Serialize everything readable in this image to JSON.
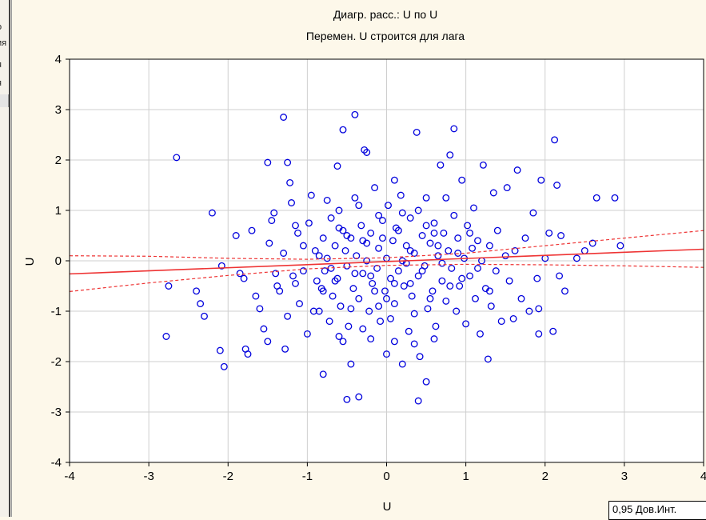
{
  "sidebar": {
    "fragments": [
      "о",
      "ия",
      "я",
      "я",
      ":"
    ]
  },
  "legend_label": "0,95 Дов.Инт.",
  "colors": {
    "points": "#0000dd",
    "fit_line": "#ee3333",
    "grid": "#cfcfcf",
    "plot_bg": "#ffffff",
    "page_bg": "#fdf8ea"
  },
  "chart_data": {
    "type": "scatter",
    "title": "Диагр. расс.: U по U",
    "subtitle": "Перемен. U строится для лага",
    "xlabel": "U",
    "ylabel": "U",
    "xlim": [
      -4,
      4
    ],
    "ylim": [
      -4,
      4
    ],
    "xticks": [
      "-4",
      "-3",
      "-2",
      "-1",
      "0",
      "1",
      "2",
      "3",
      "4"
    ],
    "yticks": [
      "4",
      "3",
      "2",
      "1",
      "0",
      "-1",
      "-2",
      "-3",
      "-4"
    ],
    "grid": true,
    "legend_position": "bottom-right",
    "fit_line": {
      "y_at_xmin": -0.26,
      "y_at_xmax": 0.23
    },
    "ci_upper": [
      [
        -4,
        0.1
      ],
      [
        -3,
        0.09
      ],
      [
        -2,
        0.05
      ],
      [
        -1,
        0.03
      ],
      [
        0,
        0.06
      ],
      [
        1,
        0.15
      ],
      [
        2,
        0.3
      ],
      [
        3,
        0.45
      ],
      [
        4,
        0.6
      ]
    ],
    "ci_lower": [
      [
        -4,
        -0.61
      ],
      [
        -3,
        -0.44
      ],
      [
        -2,
        -0.29
      ],
      [
        -1,
        -0.16
      ],
      [
        0,
        -0.09
      ],
      [
        1,
        -0.07
      ],
      [
        2,
        -0.08
      ],
      [
        3,
        -0.1
      ],
      [
        4,
        -0.13
      ]
    ],
    "points": [
      [
        -2.65,
        2.05
      ],
      [
        -2.75,
        -0.5
      ],
      [
        -2.78,
        -1.5
      ],
      [
        -2.4,
        -0.6
      ],
      [
        -2.35,
        -0.85
      ],
      [
        -2.3,
        -1.1
      ],
      [
        -2.2,
        0.95
      ],
      [
        -2.1,
        -1.78
      ],
      [
        -2.05,
        -2.1
      ],
      [
        -2.08,
        -0.1
      ],
      [
        -1.9,
        0.5
      ],
      [
        -1.85,
        -0.25
      ],
      [
        -1.8,
        -0.35
      ],
      [
        -1.78,
        -1.75
      ],
      [
        -1.75,
        -1.85
      ],
      [
        -1.7,
        0.6
      ],
      [
        -1.65,
        -0.7
      ],
      [
        -1.6,
        -0.95
      ],
      [
        -1.55,
        -1.35
      ],
      [
        -1.5,
        -1.6
      ],
      [
        -1.48,
        0.35
      ],
      [
        -1.45,
        0.8
      ],
      [
        -1.42,
        0.95
      ],
      [
        -1.4,
        -0.25
      ],
      [
        -1.38,
        -0.5
      ],
      [
        -1.35,
        -0.6
      ],
      [
        -1.3,
        0.15
      ],
      [
        -1.28,
        -1.75
      ],
      [
        -1.25,
        -1.1
      ],
      [
        -1.22,
        1.55
      ],
      [
        -1.2,
        1.15
      ],
      [
        -1.18,
        -0.3
      ],
      [
        -1.15,
        -0.45
      ],
      [
        -1.12,
        0.55
      ],
      [
        -1.1,
        -0.85
      ],
      [
        -1.05,
        0.3
      ],
      [
        -1.0,
        -1.45
      ],
      [
        -0.98,
        0.75
      ],
      [
        -0.95,
        1.3
      ],
      [
        -0.92,
        -1.0
      ],
      [
        -0.88,
        -0.4
      ],
      [
        -0.85,
        0.1
      ],
      [
        -0.82,
        -0.55
      ],
      [
        -0.8,
        0.45
      ],
      [
        -0.78,
        -0.2
      ],
      [
        -0.75,
        0.05
      ],
      [
        -0.72,
        -1.2
      ],
      [
        -0.7,
        0.85
      ],
      [
        -0.68,
        -0.7
      ],
      [
        -0.65,
        0.3
      ],
      [
        -0.62,
        -0.35
      ],
      [
        -0.6,
        1.0
      ],
      [
        -0.58,
        -0.9
      ],
      [
        -0.55,
        0.6
      ],
      [
        -0.52,
        0.2
      ],
      [
        -0.5,
        -0.1
      ],
      [
        -0.48,
        -1.3
      ],
      [
        -0.45,
        0.45
      ],
      [
        -0.42,
        -0.55
      ],
      [
        -0.4,
        1.25
      ],
      [
        -0.38,
        0.1
      ],
      [
        -0.35,
        -0.75
      ],
      [
        -0.32,
        0.7
      ],
      [
        -0.3,
        -0.25
      ],
      [
        -0.28,
        2.2
      ],
      [
        -0.25,
        0.35
      ],
      [
        -0.22,
        -1.0
      ],
      [
        -0.2,
        0.55
      ],
      [
        -0.18,
        -0.45
      ],
      [
        -0.15,
        1.45
      ],
      [
        -0.12,
        -0.15
      ],
      [
        -0.1,
        0.25
      ],
      [
        -0.08,
        -1.2
      ],
      [
        -0.05,
        0.8
      ],
      [
        -0.02,
        -0.6
      ],
      [
        0.0,
        0.05
      ],
      [
        0.02,
        1.1
      ],
      [
        0.05,
        -0.35
      ],
      [
        0.08,
        0.4
      ],
      [
        0.1,
        -0.85
      ],
      [
        0.12,
        0.65
      ],
      [
        0.15,
        -0.2
      ],
      [
        0.18,
        1.3
      ],
      [
        0.2,
        0.0
      ],
      [
        0.22,
        -0.5
      ],
      [
        0.25,
        0.3
      ],
      [
        0.28,
        -1.4
      ],
      [
        0.3,
        0.85
      ],
      [
        0.32,
        -0.7
      ],
      [
        0.35,
        0.15
      ],
      [
        0.38,
        2.55
      ],
      [
        0.4,
        -0.3
      ],
      [
        0.42,
        -1.9
      ],
      [
        0.45,
        0.5
      ],
      [
        0.48,
        -0.1
      ],
      [
        0.5,
        1.25
      ],
      [
        0.52,
        -0.95
      ],
      [
        0.55,
        0.35
      ],
      [
        0.58,
        -0.6
      ],
      [
        0.6,
        0.75
      ],
      [
        0.62,
        -1.3
      ],
      [
        0.65,
        0.1
      ],
      [
        0.68,
        1.9
      ],
      [
        0.7,
        -0.4
      ],
      [
        0.72,
        0.55
      ],
      [
        0.75,
        -0.8
      ],
      [
        0.78,
        0.2
      ],
      [
        0.8,
        2.1
      ],
      [
        0.82,
        -0.15
      ],
      [
        0.85,
        0.9
      ],
      [
        0.88,
        -1.0
      ],
      [
        0.9,
        0.45
      ],
      [
        0.92,
        -0.5
      ],
      [
        0.95,
        1.6
      ],
      [
        0.98,
        0.05
      ],
      [
        1.0,
        -1.25
      ],
      [
        1.02,
        0.7
      ],
      [
        1.05,
        -0.3
      ],
      [
        1.08,
        0.25
      ],
      [
        1.1,
        1.05
      ],
      [
        1.12,
        -0.75
      ],
      [
        1.15,
        0.4
      ],
      [
        1.18,
        -1.45
      ],
      [
        1.2,
        0.0
      ],
      [
        1.22,
        1.9
      ],
      [
        1.25,
        -0.55
      ],
      [
        1.28,
        -1.95
      ],
      [
        1.3,
        0.3
      ],
      [
        1.32,
        -0.9
      ],
      [
        1.35,
        1.35
      ],
      [
        1.38,
        -0.2
      ],
      [
        1.4,
        0.6
      ],
      [
        1.45,
        -1.2
      ],
      [
        1.5,
        0.1
      ],
      [
        1.52,
        1.45
      ],
      [
        1.55,
        -0.4
      ],
      [
        1.6,
        -1.15
      ],
      [
        1.62,
        0.2
      ],
      [
        1.65,
        1.8
      ],
      [
        1.7,
        -0.75
      ],
      [
        1.75,
        0.45
      ],
      [
        1.8,
        -1.0
      ],
      [
        1.85,
        0.95
      ],
      [
        1.9,
        -0.35
      ],
      [
        1.92,
        -1.45
      ],
      [
        1.95,
        1.6
      ],
      [
        2.0,
        0.05
      ],
      [
        2.05,
        0.55
      ],
      [
        2.1,
        -1.4
      ],
      [
        2.12,
        2.4
      ],
      [
        2.15,
        1.5
      ],
      [
        2.18,
        -0.3
      ],
      [
        2.2,
        0.5
      ],
      [
        2.25,
        -0.6
      ],
      [
        2.4,
        0.05
      ],
      [
        2.5,
        0.2
      ],
      [
        2.6,
        0.35
      ],
      [
        2.65,
        1.25
      ],
      [
        2.88,
        1.25
      ],
      [
        2.95,
        0.3
      ],
      [
        1.92,
        -0.95
      ],
      [
        1.3,
        -0.6
      ],
      [
        -0.4,
        2.9
      ],
      [
        -0.55,
        2.6
      ],
      [
        -1.3,
        2.85
      ],
      [
        -0.62,
        1.88
      ],
      [
        -0.25,
        2.15
      ],
      [
        -1.5,
        1.95
      ],
      [
        -1.25,
        1.95
      ],
      [
        0.85,
        2.62
      ],
      [
        0.1,
        1.6
      ],
      [
        -0.1,
        0.9
      ],
      [
        0.3,
        -0.45
      ],
      [
        -0.15,
        -0.6
      ],
      [
        0.45,
        -0.2
      ],
      [
        -0.3,
        0.4
      ],
      [
        0.6,
        0.55
      ],
      [
        0.2,
        0.95
      ],
      [
        -0.45,
        -0.95
      ],
      [
        0.7,
        -0.05
      ],
      [
        -0.7,
        -0.15
      ],
      [
        0.05,
        -1.15
      ],
      [
        -0.9,
        0.2
      ],
      [
        0.95,
        -0.35
      ],
      [
        -0.2,
        -0.3
      ],
      [
        0.15,
        0.6
      ],
      [
        -0.6,
        0.65
      ],
      [
        0.55,
        -0.75
      ],
      [
        -0.35,
        1.1
      ],
      [
        0.4,
        1.0
      ],
      [
        -0.8,
        -0.6
      ],
      [
        0.8,
        -0.5
      ],
      [
        -0.1,
        -0.9
      ],
      [
        0.25,
        -0.05
      ],
      [
        -0.5,
        0.5
      ],
      [
        0.65,
        0.3
      ],
      [
        -0.85,
        -1.0
      ],
      [
        0.9,
        0.15
      ],
      [
        -0.25,
        0.0
      ],
      [
        0.35,
        -1.05
      ],
      [
        -0.65,
        -0.4
      ],
      [
        0.5,
        0.7
      ],
      [
        -0.05,
        0.45
      ],
      [
        0.1,
        -0.45
      ],
      [
        -0.4,
        -0.25
      ],
      [
        0.75,
        1.25
      ],
      [
        -0.75,
        1.2
      ],
      [
        1.05,
        0.55
      ],
      [
        -1.05,
        -0.2
      ],
      [
        1.15,
        -0.15
      ],
      [
        -1.15,
        0.7
      ],
      [
        0.0,
        -0.75
      ],
      [
        0.3,
        0.2
      ],
      [
        -0.3,
        -1.35
      ],
      [
        0.6,
        -1.55
      ],
      [
        -0.6,
        -1.5
      ],
      [
        0.0,
        -1.85
      ],
      [
        -0.45,
        -2.05
      ],
      [
        0.2,
        -2.05
      ],
      [
        -0.8,
        -2.25
      ],
      [
        0.35,
        -1.65
      ],
      [
        -0.55,
        -1.6
      ],
      [
        0.5,
        -2.4
      ],
      [
        -0.5,
        -2.75
      ],
      [
        0.4,
        -2.78
      ],
      [
        -0.35,
        -2.7
      ],
      [
        0.1,
        -1.6
      ],
      [
        -0.2,
        -1.55
      ]
    ]
  }
}
